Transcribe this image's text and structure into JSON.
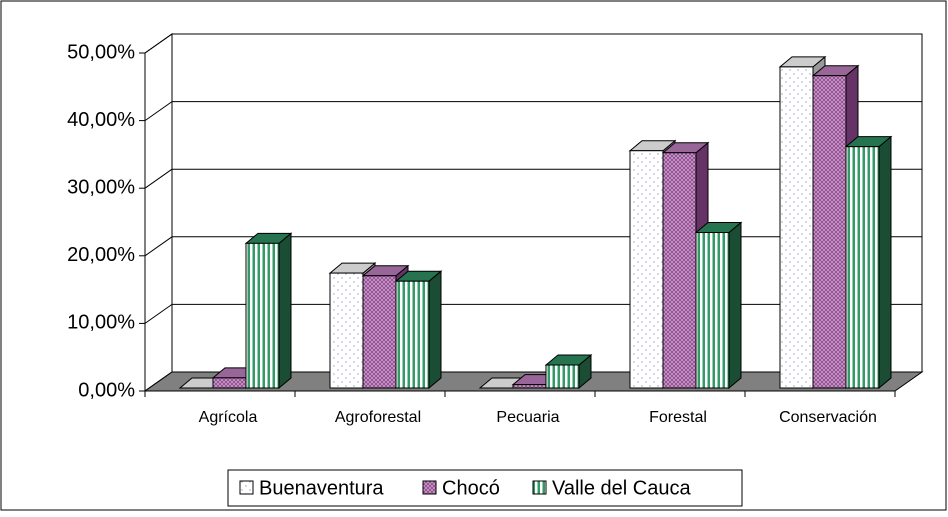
{
  "chart_data": {
    "type": "bar3d",
    "categories": [
      "Agrícola",
      "Agroforestal",
      "Pecuaria",
      "Forestal",
      "Conservación"
    ],
    "series": [
      {
        "name": "Buenaventura",
        "color": "#ffffff",
        "values": [
          0,
          17,
          0,
          35.1,
          47.5
        ]
      },
      {
        "name": "Chocó",
        "color": "#cc99cc",
        "values": [
          1.5,
          16.6,
          0.5,
          34.8,
          46.2
        ]
      },
      {
        "name": "Valle del Cauca",
        "color": "#339966",
        "values": [
          21.4,
          15.8,
          3.4,
          23,
          35.7
        ]
      }
    ],
    "ylim": [
      0,
      50
    ],
    "yticks": [
      {
        "value": 0,
        "label": "0,00%"
      },
      {
        "value": 10,
        "label": "10,00%"
      },
      {
        "value": 20,
        "label": "20,00%"
      },
      {
        "value": 30,
        "label": "30,00%"
      },
      {
        "value": 40,
        "label": "40,00%"
      },
      {
        "value": 50,
        "label": "50,00%"
      }
    ],
    "grid": true,
    "legend": "bottom"
  }
}
